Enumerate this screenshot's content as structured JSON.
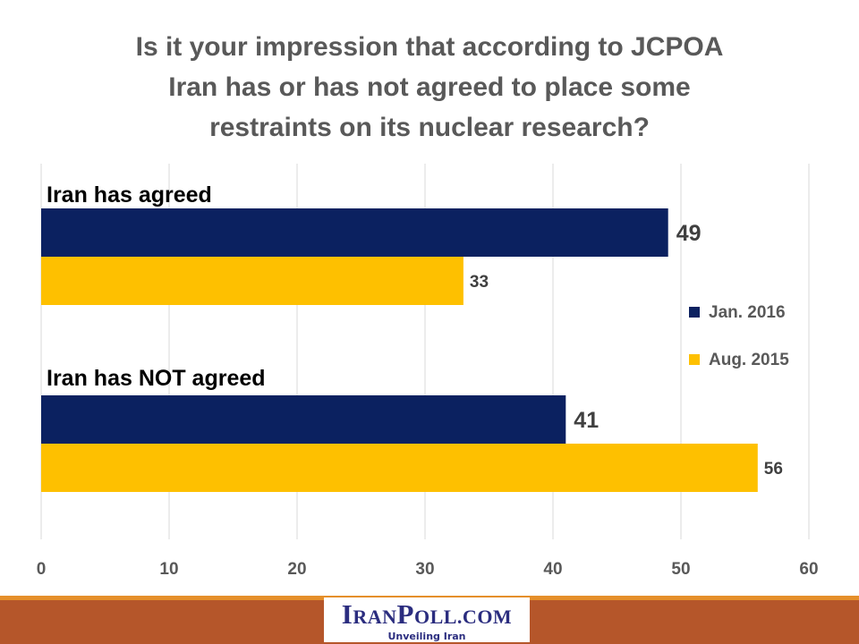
{
  "colors": {
    "series1": "#0b2160",
    "series2": "#fec000",
    "footer": "#b5562a",
    "footer_accent": "#e58f2a",
    "logo_text": "#2b2d7f"
  },
  "chart_data": {
    "type": "bar",
    "orientation": "horizontal",
    "title_lines": [
      "Is it your impression that according to JCPOA",
      "Iran has or has not agreed to place some",
      "restraints on its nuclear research?"
    ],
    "categories": [
      "Iran has agreed",
      "Iran has  NOT agreed"
    ],
    "series": [
      {
        "name": "Jan. 2016",
        "values": [
          49,
          41
        ]
      },
      {
        "name": "Aug. 2015",
        "values": [
          33,
          56
        ]
      }
    ],
    "xlim": [
      0,
      60
    ],
    "xticks": [
      0,
      10,
      20,
      30,
      40,
      50,
      60
    ],
    "grid": true,
    "legend": "right"
  },
  "logo": {
    "name": "IranPoll.com",
    "tagline": "Unveiling Iran"
  }
}
